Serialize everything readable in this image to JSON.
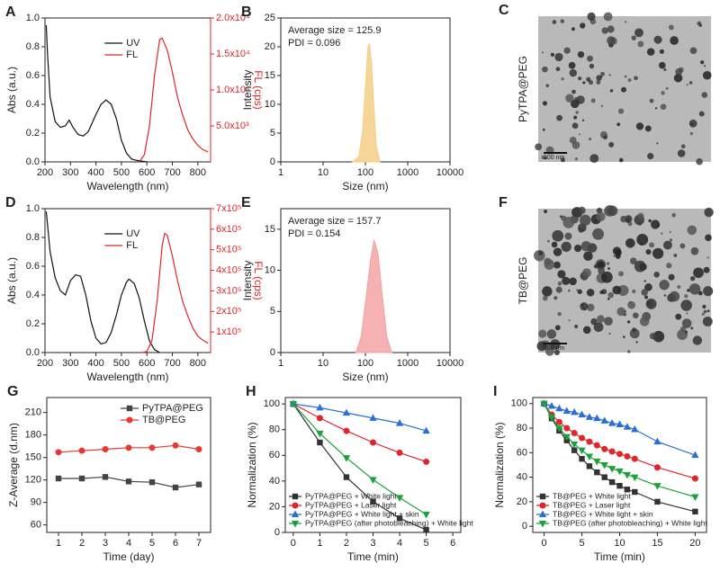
{
  "chart_data": [
    {
      "type": "spectra",
      "label": "A",
      "xlabel": "Wavelength (nm)",
      "ylabel": "Abs (a.u.)",
      "y2label": "FL (cps)",
      "xlim": [
        200,
        850
      ],
      "xticks": [
        200,
        300,
        400,
        500,
        600,
        700,
        800
      ],
      "ylim": [
        0,
        1
      ],
      "yticks": [
        {
          "value": 0,
          "label": "0.0"
        },
        0.2,
        0.4,
        0.6,
        0.8,
        {
          "value": 1,
          "label": "1.0"
        }
      ],
      "y2lim": [
        0,
        20000
      ],
      "y2ticks": [
        {
          "value": 5000,
          "label": "5.0x10³"
        },
        {
          "value": 10000,
          "label": "1.0x10⁴"
        },
        {
          "value": 15000,
          "label": "1.5x10⁴"
        },
        {
          "value": 20000,
          "label": "2.0x10⁴"
        }
      ],
      "legend": "upper center",
      "series": [
        {
          "name": "UV",
          "color": "#111111",
          "x": [
            205,
            210,
            220,
            240,
            260,
            280,
            295,
            310,
            330,
            350,
            370,
            400,
            420,
            440,
            460,
            480,
            500,
            520,
            540,
            560,
            600
          ],
          "values": [
            0.95,
            0.75,
            0.45,
            0.28,
            0.24,
            0.25,
            0.29,
            0.24,
            0.19,
            0.18,
            0.21,
            0.33,
            0.4,
            0.43,
            0.4,
            0.3,
            0.15,
            0.06,
            0.02,
            0.01,
            0
          ]
        },
        {
          "name": "FL",
          "color": "#e0262b",
          "axis": "y2",
          "x": [
            570,
            590,
            610,
            630,
            650,
            660,
            680,
            700,
            720,
            740,
            760,
            780,
            800,
            820,
            840
          ],
          "values": [
            0,
            1000,
            5000,
            12000,
            17000,
            17200,
            15500,
            12500,
            9000,
            6500,
            4500,
            3200,
            2300,
            1700,
            1400
          ]
        }
      ]
    },
    {
      "type": "area",
      "label": "B",
      "xlabel": "Size (nm)",
      "ylabel": "Intensity",
      "xscale": "log",
      "xlim": [
        1,
        10000
      ],
      "xticks": [
        1,
        10,
        100,
        1000,
        10000
      ],
      "ylim": [
        0,
        25
      ],
      "yticks": [
        0,
        5,
        10,
        15,
        20,
        25
      ],
      "annotations": [
        "Average size = 125.9",
        "PDI = 0.096"
      ],
      "series": [
        {
          "color": "#f3cf86",
          "x": [
            50,
            70,
            85,
            100,
            115,
            125,
            140,
            160,
            180,
            220
          ],
          "values": [
            0,
            1,
            5,
            13,
            20,
            20.5,
            17,
            9,
            3,
            0
          ]
        }
      ]
    },
    {
      "type": "image",
      "label": "C",
      "caption": "PyTPA@PEG",
      "scale_bar": "200 nm"
    },
    {
      "type": "spectra",
      "label": "D",
      "xlabel": "Wavelength (nm)",
      "ylabel": "Abs (a.u.)",
      "y2label": "FL (cps)",
      "xlim": [
        200,
        850
      ],
      "xticks": [
        200,
        300,
        400,
        500,
        600,
        700,
        800
      ],
      "ylim": [
        0,
        1
      ],
      "yticks": [
        {
          "value": 0,
          "label": "0.0"
        },
        0.2,
        0.4,
        0.6,
        0.8,
        {
          "value": 1,
          "label": "1.0"
        }
      ],
      "y2lim": [
        0,
        700000
      ],
      "y2ticks": [
        {
          "value": 100000,
          "label": "1x10⁵"
        },
        {
          "value": 200000,
          "label": "2x10⁵"
        },
        {
          "value": 300000,
          "label": "3x10⁵"
        },
        {
          "value": 400000,
          "label": "4x10⁵"
        },
        {
          "value": 500000,
          "label": "5x10⁵"
        },
        {
          "value": 600000,
          "label": "6x10⁵"
        },
        {
          "value": 700000,
          "label": "7x10⁵"
        }
      ],
      "legend": "upper center",
      "series": [
        {
          "name": "UV",
          "color": "#111111",
          "x": [
            205,
            220,
            240,
            260,
            280,
            300,
            320,
            340,
            360,
            380,
            400,
            420,
            440,
            460,
            480,
            500,
            520,
            530,
            550,
            570,
            590,
            610,
            630,
            650
          ],
          "values": [
            0.98,
            0.7,
            0.52,
            0.43,
            0.4,
            0.5,
            0.54,
            0.53,
            0.4,
            0.22,
            0.1,
            0.06,
            0.07,
            0.14,
            0.26,
            0.4,
            0.49,
            0.51,
            0.48,
            0.38,
            0.22,
            0.08,
            0.02,
            0
          ]
        },
        {
          "name": "FL",
          "color": "#e0262b",
          "axis": "y2",
          "x": [
            580,
            600,
            620,
            640,
            660,
            670,
            680,
            700,
            720,
            740,
            760,
            780,
            800,
            820,
            840
          ],
          "values": [
            0,
            5000,
            60000,
            250000,
            520000,
            580000,
            570000,
            470000,
            350000,
            250000,
            180000,
            120000,
            80000,
            60000,
            45000
          ]
        }
      ]
    },
    {
      "type": "area",
      "label": "E",
      "xlabel": "Size (nm)",
      "ylabel": "Intensity",
      "xscale": "log",
      "xlim": [
        1,
        10000
      ],
      "xticks": [
        1,
        10,
        100,
        1000,
        10000
      ],
      "ylim": [
        0,
        17.5
      ],
      "yticks": [
        0,
        5,
        10,
        15
      ],
      "annotations": [
        "Average size = 157.7",
        "PDI = 0.154"
      ],
      "series": [
        {
          "color": "#f4a3a5",
          "x": [
            60,
            80,
            100,
            130,
            160,
            200,
            250,
            320,
            420
          ],
          "values": [
            0,
            2,
            6,
            11,
            13.7,
            12,
            7,
            2,
            0
          ]
        }
      ]
    },
    {
      "type": "image",
      "label": "F",
      "caption": "TB@PEG",
      "scale_bar": "200 nm"
    },
    {
      "type": "line",
      "label": "G",
      "xlabel": "Time (day)",
      "ylabel": "Z-Average (d.nm)",
      "xlim": [
        0.5,
        7.5
      ],
      "xticks": [
        1,
        2,
        3,
        4,
        5,
        6,
        7
      ],
      "ylim": [
        50,
        230
      ],
      "yticks": [
        60,
        90,
        120,
        150,
        180,
        210
      ],
      "legend": "upper right",
      "x": [
        1,
        2,
        3,
        4,
        5,
        6,
        7
      ],
      "series": [
        {
          "name": "PyTPA@PEG",
          "color": "#444444",
          "marker": "square",
          "values": [
            122,
            122,
            124,
            118,
            117,
            110,
            114
          ]
        },
        {
          "name": "TB@PEG",
          "color": "#e8382f",
          "marker": "circle",
          "values": [
            157,
            159,
            161,
            163,
            163,
            166,
            161
          ]
        }
      ]
    },
    {
      "type": "line",
      "label": "H",
      "xlabel": "Time (min)",
      "ylabel": "Normalization (%)",
      "xlim": [
        -0.3,
        6.3
      ],
      "xticks": [
        0,
        1,
        2,
        3,
        4,
        5,
        6
      ],
      "ylim": [
        0,
        105
      ],
      "yticks": [
        0,
        20,
        40,
        60,
        80,
        100
      ],
      "legend": "lower left",
      "x": [
        0,
        1,
        2,
        3,
        4,
        5
      ],
      "series": [
        {
          "name": "PyTPA@PEG + White light",
          "color": "#333333",
          "marker": "square",
          "values": [
            100,
            70,
            43,
            24,
            11,
            2
          ]
        },
        {
          "name": "PyTPA@PEG + Laser light",
          "color": "#e0262b",
          "marker": "circle",
          "values": [
            100,
            89,
            79,
            70,
            62,
            55
          ]
        },
        {
          "name": "PyTPA@PEG + White light + skin",
          "color": "#2b6fd6",
          "marker": "triangle",
          "values": [
            100,
            97,
            93,
            89,
            85,
            79
          ]
        },
        {
          "name": "PyTPA@PEG (after photobleaching) + White light",
          "color": "#1aa33a",
          "marker": "triangle-down",
          "values": [
            100,
            77,
            58,
            41,
            27,
            14
          ]
        }
      ]
    },
    {
      "type": "line",
      "label": "I",
      "xlabel": "Time (min)",
      "ylabel": "Normalization (%)",
      "xlim": [
        -1.5,
        21.5
      ],
      "xticks": [
        0,
        5,
        10,
        15,
        20
      ],
      "ylim": [
        -5,
        105
      ],
      "yticks": [
        0,
        20,
        40,
        60,
        80,
        100
      ],
      "legend": "lower left",
      "x": [
        0,
        1,
        2,
        3,
        4,
        5,
        6,
        7,
        8,
        9,
        10,
        11,
        12,
        15,
        20
      ],
      "series": [
        {
          "name": "TB@PEG + White light",
          "color": "#333333",
          "marker": "square",
          "values": [
            100,
            88,
            78,
            70,
            62,
            55,
            49,
            44,
            40,
            36,
            33,
            30,
            28,
            20,
            12
          ]
        },
        {
          "name": "TB@PEG + Laser light",
          "color": "#e0262b",
          "marker": "circle",
          "values": [
            100,
            91,
            85,
            80,
            76,
            72,
            69,
            66,
            63,
            61,
            59,
            57,
            55,
            48,
            39
          ]
        },
        {
          "name": "TB@PEG + White light + skin",
          "color": "#2b6fd6",
          "marker": "triangle",
          "values": [
            100,
            98,
            96,
            94,
            93,
            91,
            89,
            88,
            86,
            84,
            83,
            81,
            79,
            69,
            58
          ]
        },
        {
          "name": "TB@PEG (after photobleaching) + White light",
          "color": "#1aa33a",
          "marker": "triangle-down",
          "values": [
            100,
            89,
            80,
            73,
            67,
            62,
            57,
            53,
            50,
            47,
            45,
            42,
            40,
            33,
            24
          ]
        }
      ]
    }
  ]
}
